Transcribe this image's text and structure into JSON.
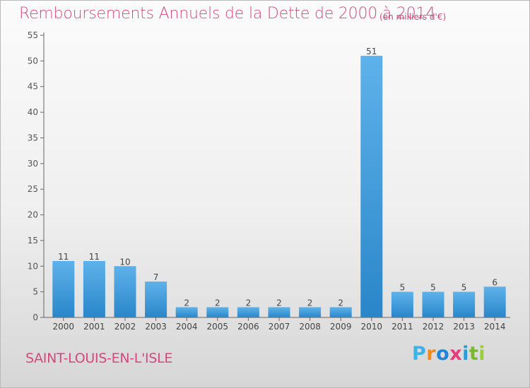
{
  "title": "Remboursements Annuels de la Dette de 2000 à 2014",
  "subtitle": "(en milliers d'€)",
  "location": "SAINT-LOUIS-EN-L'ISLE",
  "brand": {
    "logo_text": "Proxiti",
    "letters": [
      "P",
      "r",
      "o",
      "x",
      "i",
      "t",
      "i"
    ]
  },
  "colors": {
    "title": "#d24a7b",
    "bar_light": "#5eb2ea",
    "bar_dark": "#2a86c9",
    "axis": "#555555"
  },
  "chart_data": {
    "type": "bar",
    "title": "Remboursements Annuels de la Dette de 2000 à 2014",
    "subtitle": "(en milliers d'€)",
    "xlabel": "",
    "ylabel": "",
    "categories": [
      "2000",
      "2001",
      "2002",
      "2003",
      "2004",
      "2005",
      "2006",
      "2007",
      "2008",
      "2009",
      "2010",
      "2011",
      "2012",
      "2013",
      "2014"
    ],
    "values": [
      11,
      11,
      10,
      7,
      2,
      2,
      2,
      2,
      2,
      2,
      51,
      5,
      5,
      5,
      6
    ],
    "data_labels": [
      "11",
      "11",
      "10",
      "7",
      "2",
      "2",
      "2",
      "2",
      "2",
      "2",
      "51",
      "5",
      "5",
      "5",
      "6"
    ],
    "ylim": [
      0,
      55
    ],
    "yticks": [
      0,
      5,
      10,
      15,
      20,
      25,
      30,
      35,
      40,
      45,
      50,
      55
    ],
    "grid": false,
    "legend": "none"
  }
}
